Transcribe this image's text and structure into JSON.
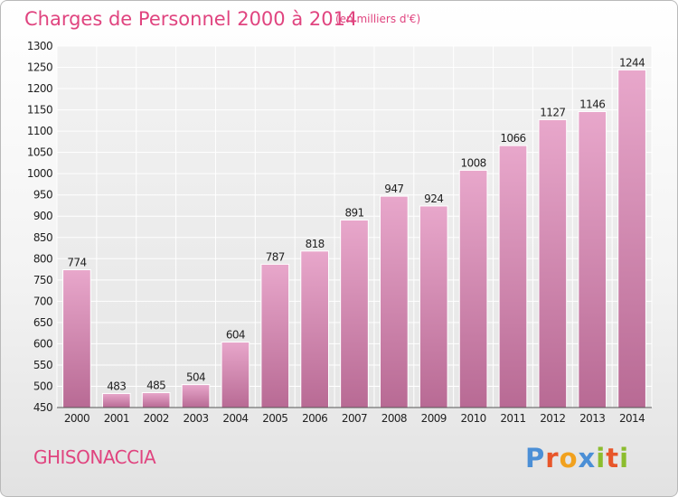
{
  "chart_data": {
    "type": "bar",
    "title": "Charges de Personnel 2000 à 2014",
    "subtitle": "(en milliers d'€)",
    "categories": [
      "2000",
      "2001",
      "2002",
      "2003",
      "2004",
      "2005",
      "2006",
      "2007",
      "2008",
      "2009",
      "2010",
      "2011",
      "2012",
      "2013",
      "2014"
    ],
    "values": [
      774,
      483,
      485,
      504,
      604,
      787,
      818,
      891,
      947,
      924,
      1008,
      1066,
      1127,
      1146,
      1244
    ],
    "ylim": [
      450,
      1300
    ],
    "yticks": [
      450,
      500,
      550,
      600,
      650,
      700,
      750,
      800,
      850,
      900,
      950,
      1000,
      1050,
      1100,
      1150,
      1200,
      1250,
      1300
    ],
    "grid": true,
    "legend": "none",
    "bar_color": "#d17aa8"
  },
  "commune": "GHISONACCIA",
  "brand": {
    "text": "Proxiti",
    "letters": [
      "P",
      "r",
      "o",
      "x",
      "i",
      "t",
      "i"
    ],
    "colors": [
      "#4b8fd6",
      "#e8562a",
      "#f1a11e",
      "#4b8fd6",
      "#8cbd2e",
      "#e8562a",
      "#8cbd2e"
    ]
  }
}
